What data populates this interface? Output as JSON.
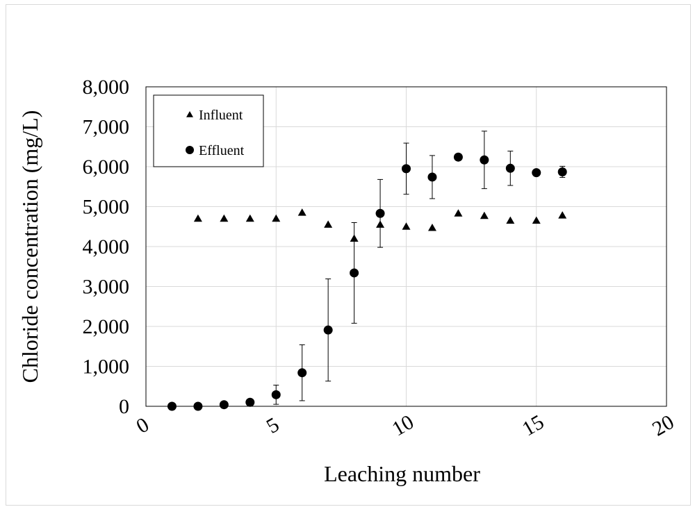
{
  "chart_data": {
    "type": "scatter",
    "title": "",
    "xlabel": "Leaching number",
    "ylabel": "Chloride concentration (mg/L)",
    "xlim": [
      0,
      20
    ],
    "ylim": [
      0,
      8000
    ],
    "x_ticks": [
      0,
      5,
      10,
      15,
      20
    ],
    "x_tick_labels": [
      "0",
      "5",
      "10",
      "15",
      "20"
    ],
    "y_ticks": [
      0,
      1000,
      2000,
      3000,
      4000,
      5000,
      6000,
      7000,
      8000
    ],
    "y_tick_labels": [
      "0",
      "1,000",
      "2,000",
      "3,000",
      "4,000",
      "5,000",
      "6,000",
      "7,000",
      "8,000"
    ],
    "grid": true,
    "legend_position": "top-left",
    "series": [
      {
        "name": "Influent",
        "marker": "triangle",
        "color": "#000000",
        "x": [
          2,
          3,
          4,
          5,
          6,
          7,
          8,
          9,
          10,
          11,
          12,
          13,
          14,
          15,
          16
        ],
        "y": [
          4700,
          4700,
          4700,
          4700,
          4850,
          4550,
          4200,
          4550,
          4500,
          4470,
          4830,
          4770,
          4650,
          4650,
          4780
        ]
      },
      {
        "name": "Effluent",
        "marker": "circle",
        "color": "#000000",
        "x": [
          1,
          2,
          3,
          4,
          5,
          6,
          7,
          8,
          9,
          10,
          11,
          12,
          13,
          14,
          15,
          16
        ],
        "y": [
          0,
          0,
          40,
          100,
          290,
          840,
          1910,
          3340,
          4830,
          5950,
          5740,
          6240,
          6170,
          5960,
          5850,
          5870
        ],
        "error": [
          0,
          0,
          0,
          0,
          240,
          700,
          1280,
          1260,
          850,
          640,
          540,
          80,
          720,
          430,
          50,
          140
        ]
      }
    ]
  }
}
